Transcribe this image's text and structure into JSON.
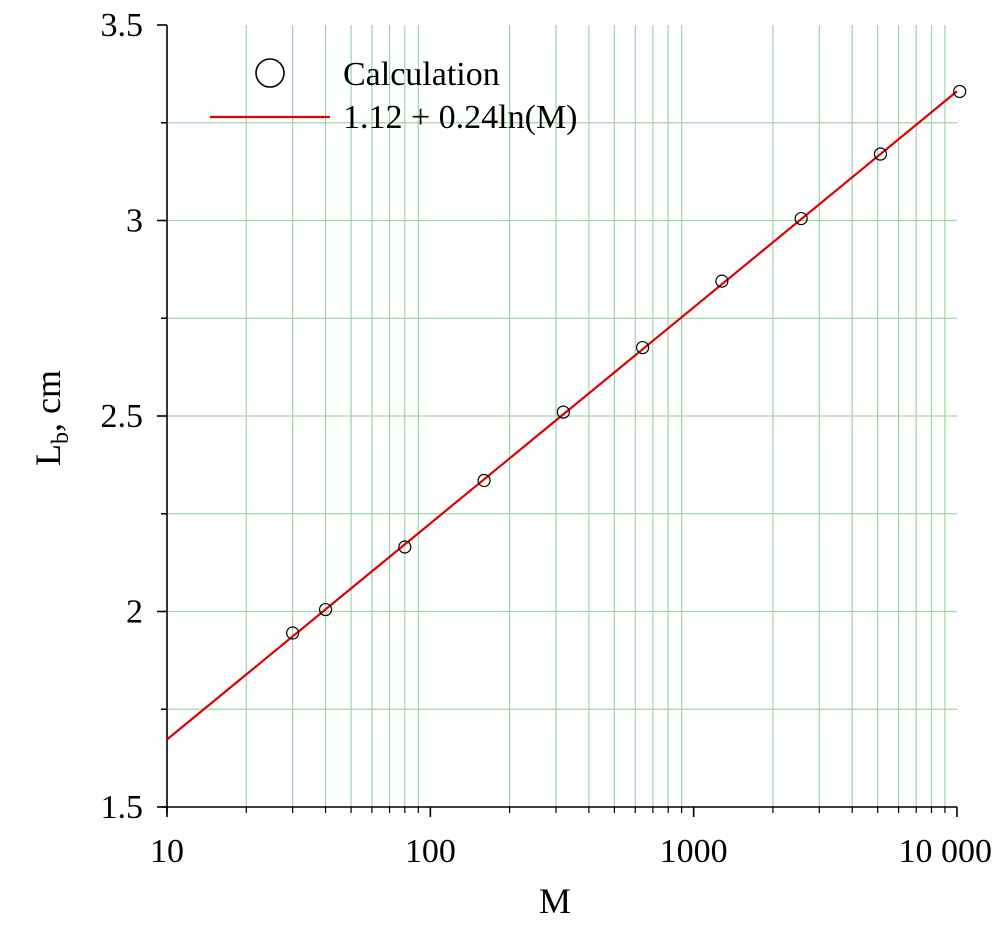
{
  "chart_data": {
    "type": "scatter",
    "title": "",
    "xlabel": "M",
    "ylabel": "L",
    "ylabel_subscript": "b",
    "ylabel_suffix": ", cm",
    "x_scale": "log",
    "xlim": [
      10,
      10000
    ],
    "ylim": [
      1.5,
      3.5
    ],
    "x_ticks": [
      {
        "value": 10,
        "label": "10"
      },
      {
        "value": 100,
        "label": "100"
      },
      {
        "value": 1000,
        "label": "1000"
      },
      {
        "value": 10000,
        "label": "10 000"
      }
    ],
    "y_ticks": [
      {
        "value": 1.5,
        "label": "1.5"
      },
      {
        "value": 2,
        "label": "2"
      },
      {
        "value": 2.5,
        "label": "2.5"
      },
      {
        "value": 3,
        "label": "3"
      },
      {
        "value": 3.5,
        "label": "3.5"
      }
    ],
    "grid": true,
    "grid_color": "#9fd4a6",
    "legend_position": "top-left",
    "series": [
      {
        "name": "Calculation",
        "kind": "markers",
        "marker": "open-circle",
        "color": "#000000",
        "x": [
          30,
          40,
          80,
          160,
          320,
          640,
          1280,
          2560,
          5120,
          10240
        ],
        "y": [
          1.945,
          2.005,
          2.165,
          2.335,
          2.51,
          2.675,
          2.845,
          3.005,
          3.17,
          3.33
        ]
      },
      {
        "name": "1.12 + 0.24ln(M)",
        "kind": "line",
        "color": "#dd0000",
        "formula": {
          "intercept": 1.12,
          "slope": 0.24,
          "function": "ln"
        },
        "x_range": [
          10,
          10000
        ]
      }
    ]
  }
}
